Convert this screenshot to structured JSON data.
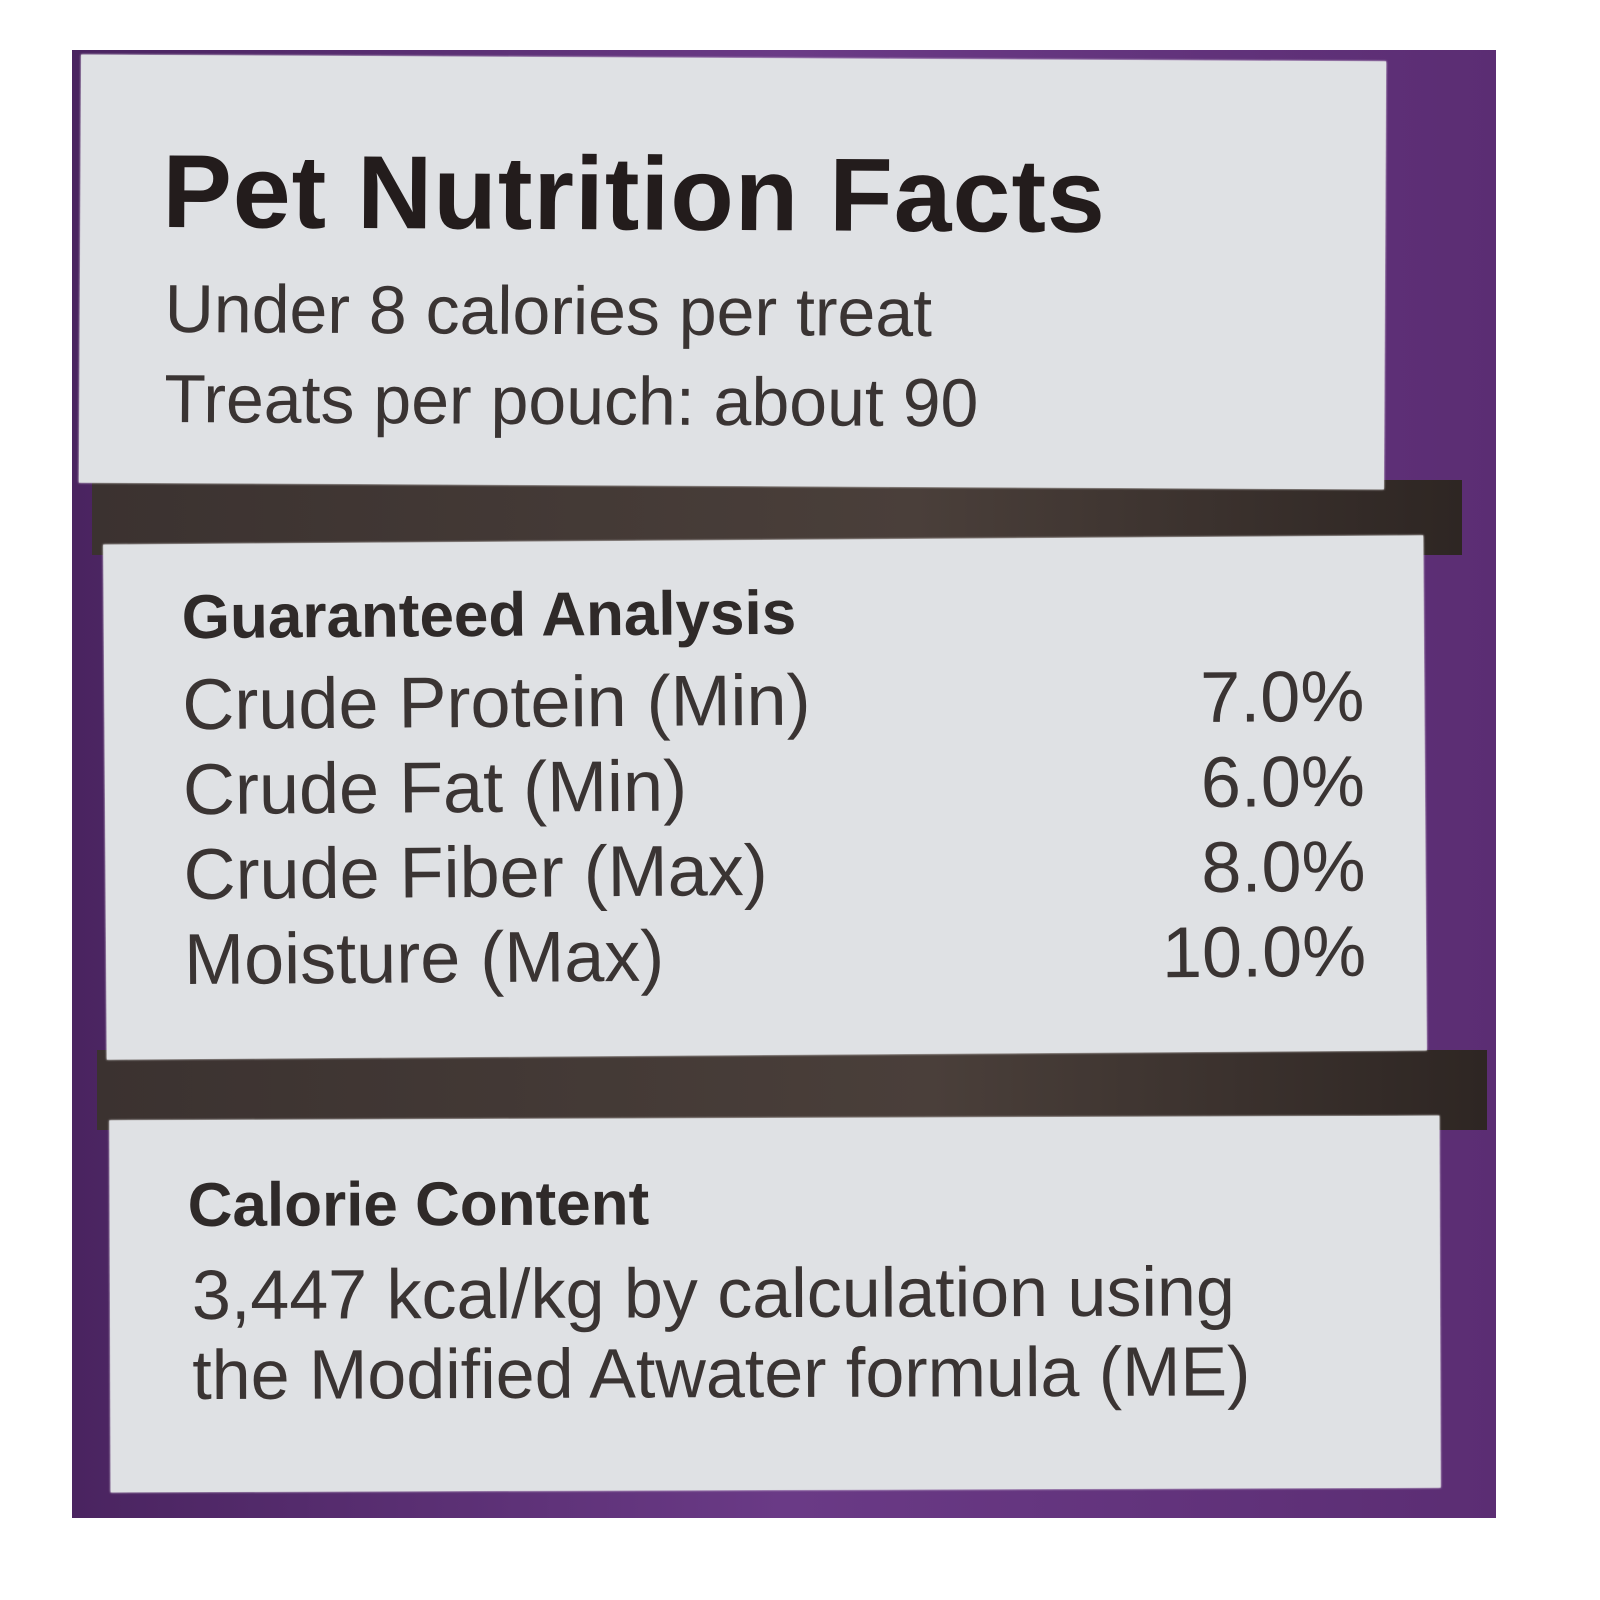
{
  "label": {
    "title": "Pet Nutrition Facts",
    "calories_per_treat": "Under 8 calories per treat",
    "treats_per_pouch": "Treats per pouch: about 90"
  },
  "guaranteed_analysis": {
    "heading": "Guaranteed Analysis",
    "rows": [
      {
        "name": "Crude Protein (Min)",
        "value": "7.0%"
      },
      {
        "name": "Crude Fat (Min)",
        "value": "6.0%"
      },
      {
        "name": "Crude Fiber (Max)",
        "value": "8.0%"
      },
      {
        "name": "Moisture (Max)",
        "value": "10.0%"
      }
    ]
  },
  "calorie_content": {
    "heading": "Calorie Content",
    "line1": "3,447 kcal/kg by calculation using",
    "line2": "the Modified Atwater formula (ME)"
  },
  "colors": {
    "package": "#5a2d6e",
    "label_panel": "#dfe1e4",
    "band": "#3b3230"
  }
}
